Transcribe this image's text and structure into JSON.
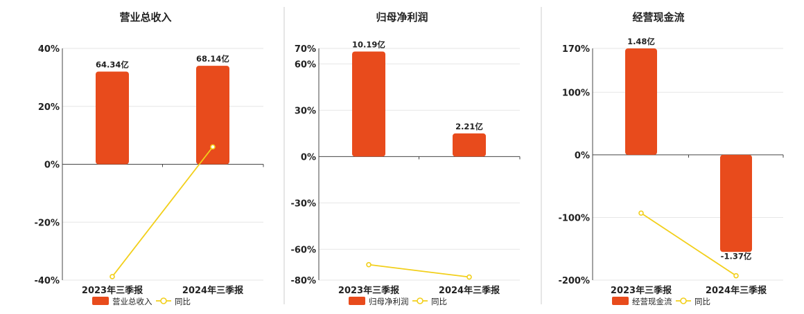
{
  "legend_line_label": "同比",
  "colors": {
    "bar": "#e84b1c",
    "line": "#f2cf1a",
    "axis": "#444444",
    "grid": "#e6e6e6",
    "divider": "#cccccc",
    "text": "#222222"
  },
  "chart_data": [
    {
      "type": "bar",
      "title": "营业总收入",
      "categories": [
        "2023年三季报",
        "2024年三季报"
      ],
      "series": [
        {
          "name": "营业总收入",
          "type": "bar",
          "values": [
            32,
            34
          ],
          "labels": [
            "64.34亿",
            "68.14亿"
          ]
        },
        {
          "name": "同比",
          "type": "line",
          "values": [
            -38.8,
            6
          ]
        }
      ],
      "y_ticks": [
        "40%",
        "20%",
        "0%",
        "-20%",
        "-40%"
      ],
      "ylim": [
        -40,
        40
      ],
      "grid": true,
      "legend_position": "bottom"
    },
    {
      "type": "bar",
      "title": "归母净利润",
      "categories": [
        "2023年三季报",
        "2024年三季报"
      ],
      "series": [
        {
          "name": "归母净利润",
          "type": "bar",
          "values": [
            68,
            15
          ],
          "labels": [
            "10.19亿",
            "2.21亿"
          ]
        },
        {
          "name": "同比",
          "type": "line",
          "values": [
            -70,
            -78
          ]
        }
      ],
      "y_ticks": [
        "70%",
        "60%",
        "30%",
        "0%",
        "-30%",
        "-60%",
        "-80%"
      ],
      "ylim": [
        -80,
        70
      ],
      "grid": true,
      "legend_position": "bottom"
    },
    {
      "type": "bar",
      "title": "经营现金流",
      "categories": [
        "2023年三季报",
        "2024年三季报"
      ],
      "series": [
        {
          "name": "经营现金流",
          "type": "bar",
          "values": [
            170,
            -155
          ],
          "labels": [
            "1.48亿",
            "-1.37亿"
          ]
        },
        {
          "name": "同比",
          "type": "line",
          "values": [
            -93,
            -193
          ]
        }
      ],
      "y_ticks": [
        "170%",
        "100%",
        "0%",
        "-100%",
        "-200%"
      ],
      "ylim": [
        -200,
        170
      ],
      "grid": true,
      "legend_position": "bottom"
    }
  ]
}
